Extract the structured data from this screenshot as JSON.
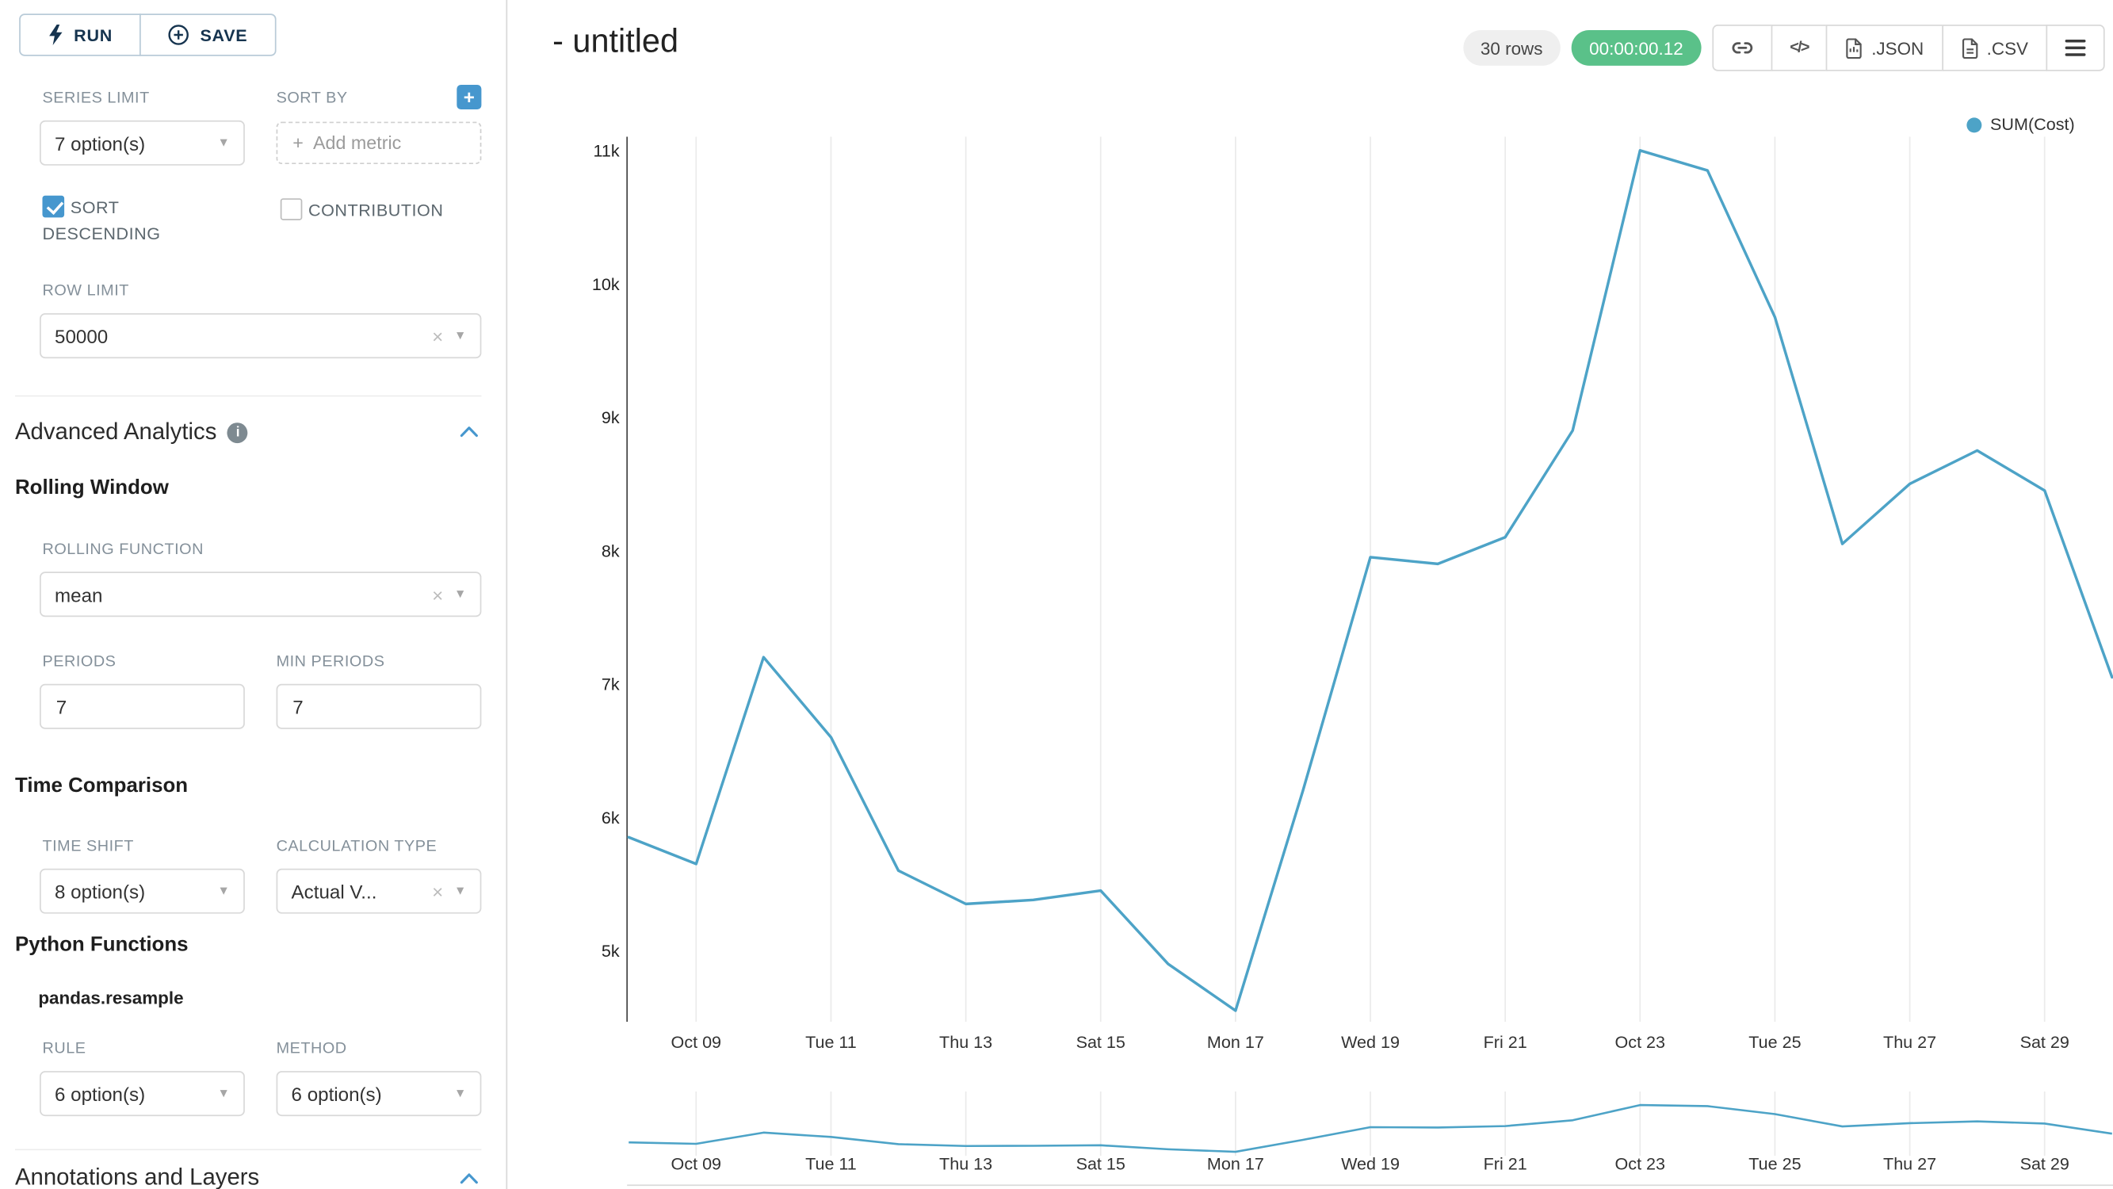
{
  "sidebar": {
    "run_label": "RUN",
    "save_label": "SAVE",
    "series_limit": {
      "label": "SERIES LIMIT",
      "value": "7 option(s)"
    },
    "sort_by": {
      "label": "SORT BY",
      "placeholder": "Add metric"
    },
    "sort_descending_label": "SORT DESCENDING",
    "contribution_label": "CONTRIBUTION",
    "row_limit": {
      "label": "ROW LIMIT",
      "value": "50000"
    },
    "advanced_analytics_title": "Advanced Analytics",
    "rolling_window_title": "Rolling Window",
    "rolling_function": {
      "label": "ROLLING FUNCTION",
      "value": "mean"
    },
    "periods": {
      "label": "PERIODS",
      "value": "7"
    },
    "min_periods": {
      "label": "MIN PERIODS",
      "value": "7"
    },
    "time_comparison_title": "Time Comparison",
    "time_shift": {
      "label": "TIME SHIFT",
      "value": "8 option(s)"
    },
    "calculation_type": {
      "label": "CALCULATION TYPE",
      "value": "Actual V..."
    },
    "python_functions_title": "Python Functions",
    "pandas_resample_label": "pandas.resample",
    "rule": {
      "label": "RULE",
      "value": "6 option(s)"
    },
    "method": {
      "label": "METHOD",
      "value": "6 option(s)"
    },
    "annotations_title": "Annotations and Layers"
  },
  "header": {
    "title": "- untitled",
    "rows_badge": "30 rows",
    "timer_badge": "00:00:00.12",
    "code_label": "</>",
    "json_label": ".JSON",
    "csv_label": ".CSV"
  },
  "colors": {
    "accent": "#4697ce",
    "line": "#4da3c7",
    "timer_bg": "#5ac189",
    "grid": "#ebebeb",
    "axis": "#444444"
  },
  "chart_data": {
    "type": "line",
    "title": "- untitled",
    "legend_position": "top-right",
    "grid": "vertical-only",
    "x": [
      "Oct 08",
      "Oct 09",
      "Oct 10",
      "Oct 11",
      "Oct 12",
      "Oct 13",
      "Oct 14",
      "Oct 15",
      "Oct 16",
      "Oct 17",
      "Oct 18",
      "Oct 19",
      "Oct 20",
      "Oct 21",
      "Oct 22",
      "Oct 23",
      "Oct 24",
      "Oct 25",
      "Oct 26",
      "Oct 27",
      "Oct 28",
      "Oct 29",
      "Oct 30"
    ],
    "series": [
      {
        "name": "SUM(Cost)",
        "color": "#4da3c7",
        "values": [
          5850,
          5650,
          7200,
          6600,
          5600,
          5350,
          5380,
          5450,
          4900,
          4550,
          6200,
          7950,
          7900,
          8100,
          8900,
          11000,
          10850,
          9750,
          8050,
          8500,
          8750,
          8450,
          7050
        ]
      }
    ],
    "x_tick_labels": [
      "Oct 09",
      "Tue 11",
      "Thu 13",
      "Sat 15",
      "Mon 17",
      "Wed 19",
      "Fri 21",
      "Oct 23",
      "Tue 25",
      "Thu 27",
      "Sat 29"
    ],
    "y_tick_labels": [
      "5k",
      "6k",
      "7k",
      "8k",
      "9k",
      "10k",
      "11k"
    ],
    "y_tick_values": [
      5000,
      6000,
      7000,
      8000,
      9000,
      10000,
      11000
    ],
    "ylim": [
      4470,
      11100
    ],
    "has_mini_zoom_chart": true,
    "first_tick_point_index": 1,
    "points_per_tick": 2
  }
}
